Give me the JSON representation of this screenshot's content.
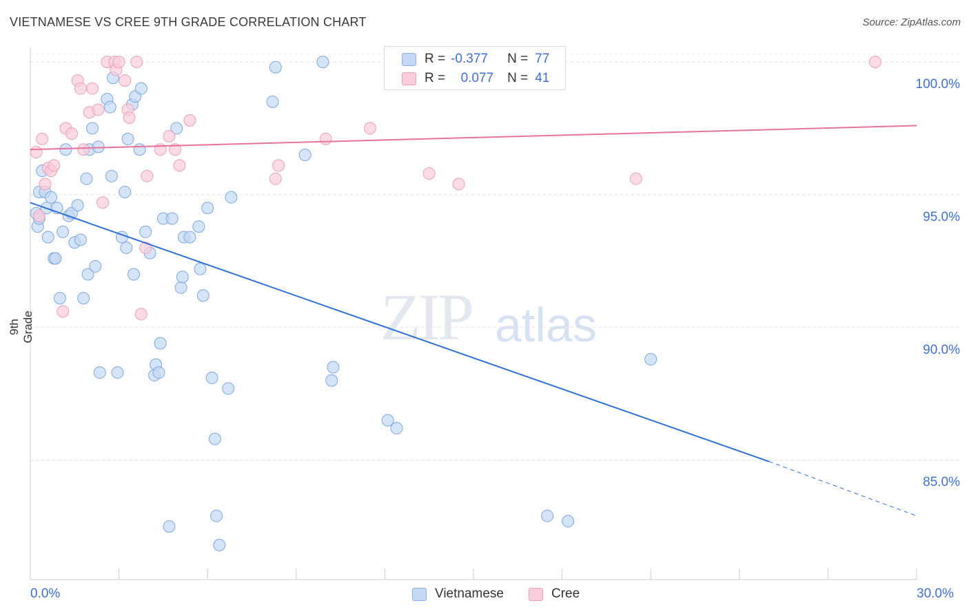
{
  "title": "VIETNAMESE VS CREE 9TH GRADE CORRELATION CHART",
  "source": "Source: ZipAtlas.com",
  "watermark": {
    "zip": "ZIP",
    "atlas": "atlas"
  },
  "legend": {
    "r_label": "R =",
    "n_label": "N =",
    "rows": [
      {
        "r": "-0.377",
        "n": "77",
        "color": "#a9c4ec"
      },
      {
        "r": "0.077",
        "n": "41",
        "color": "#f6b7cb"
      }
    ]
  },
  "colors": {
    "blue_line": "#2f6fd6",
    "pink_line": "#e8729a",
    "blue_fill": "#c5d8f3",
    "pink_fill": "#f9cddb",
    "axis_text": "#3f6fd0"
  },
  "chart_data": {
    "type": "scatter",
    "title": "VIETNAMESE VS CREE 9TH GRADE CORRELATION CHART",
    "xlabel": "",
    "ylabel": "9th Grade",
    "xlim": [
      0,
      30
    ],
    "ylim": [
      80.5,
      100.7
    ],
    "x_ticks": [
      "0.0%",
      "30.0%"
    ],
    "y_ticks": [
      {
        "value": 85,
        "label": "85.0%"
      },
      {
        "value": 90,
        "label": "90.0%"
      },
      {
        "value": 95,
        "label": "95.0%"
      },
      {
        "value": 100,
        "label": "100.0%"
      }
    ],
    "grid": true,
    "legend_position": "top-center",
    "series": [
      {
        "name": "Vietnamese",
        "r": -0.377,
        "n": 77,
        "trend": {
          "x0": 0,
          "y0": 94.7,
          "x1": 25,
          "y1": 84.95,
          "dashed_to_x": 30,
          "dashed_to_y": 82.9
        },
        "points": [
          [
            0.2,
            94.3
          ],
          [
            0.25,
            93.8
          ],
          [
            0.3,
            95.1
          ],
          [
            0.4,
            95.9
          ],
          [
            0.5,
            95.1
          ],
          [
            0.55,
            94.5
          ],
          [
            0.6,
            93.4
          ],
          [
            0.7,
            94.9
          ],
          [
            0.8,
            92.6
          ],
          [
            0.9,
            94.5
          ],
          [
            1.0,
            91.1
          ],
          [
            1.1,
            93.6
          ],
          [
            1.2,
            96.7
          ],
          [
            1.3,
            94.2
          ],
          [
            1.4,
            94.3
          ],
          [
            1.5,
            93.2
          ],
          [
            1.6,
            94.6
          ],
          [
            1.7,
            93.3
          ],
          [
            1.8,
            91.1
          ],
          [
            1.9,
            95.6
          ],
          [
            1.95,
            92.0
          ],
          [
            2.0,
            96.7
          ],
          [
            2.1,
            97.5
          ],
          [
            2.2,
            92.3
          ],
          [
            2.3,
            96.8
          ],
          [
            2.35,
            88.3
          ],
          [
            2.6,
            98.6
          ],
          [
            2.7,
            98.3
          ],
          [
            2.75,
            95.7
          ],
          [
            2.8,
            99.4
          ],
          [
            2.95,
            88.3
          ],
          [
            3.1,
            93.4
          ],
          [
            3.2,
            95.1
          ],
          [
            3.25,
            93.0
          ],
          [
            3.3,
            97.1
          ],
          [
            3.45,
            98.4
          ],
          [
            3.5,
            92.0
          ],
          [
            3.55,
            98.7
          ],
          [
            3.7,
            96.7
          ],
          [
            3.75,
            99.0
          ],
          [
            3.9,
            93.6
          ],
          [
            4.05,
            92.8
          ],
          [
            4.2,
            88.2
          ],
          [
            4.25,
            88.6
          ],
          [
            4.35,
            88.3
          ],
          [
            4.4,
            89.4
          ],
          [
            4.5,
            94.1
          ],
          [
            4.8,
            94.1
          ],
          [
            4.95,
            97.5
          ],
          [
            5.1,
            91.5
          ],
          [
            5.15,
            91.9
          ],
          [
            5.2,
            93.4
          ],
          [
            5.4,
            93.4
          ],
          [
            5.7,
            93.8
          ],
          [
            5.75,
            92.2
          ],
          [
            5.85,
            91.2
          ],
          [
            6.0,
            94.5
          ],
          [
            6.15,
            88.1
          ],
          [
            6.25,
            85.8
          ],
          [
            6.3,
            82.9
          ],
          [
            6.4,
            81.8
          ],
          [
            6.7,
            87.7
          ],
          [
            6.8,
            94.9
          ],
          [
            8.2,
            98.5
          ],
          [
            8.3,
            99.8
          ],
          [
            9.3,
            96.5
          ],
          [
            9.9,
            100.0
          ],
          [
            10.2,
            88.0
          ],
          [
            10.25,
            88.5
          ],
          [
            12.1,
            86.5
          ],
          [
            12.4,
            86.2
          ],
          [
            17.5,
            82.9
          ],
          [
            18.2,
            82.7
          ],
          [
            21.0,
            88.8
          ],
          [
            4.7,
            82.5
          ],
          [
            0.3,
            94.1
          ],
          [
            0.85,
            92.6
          ]
        ]
      },
      {
        "name": "Cree",
        "r": 0.077,
        "n": 41,
        "trend": {
          "x0": 0,
          "y0": 96.7,
          "x1": 30,
          "y1": 97.6
        },
        "points": [
          [
            0.2,
            96.6
          ],
          [
            0.3,
            94.2
          ],
          [
            0.4,
            97.1
          ],
          [
            0.5,
            95.4
          ],
          [
            0.6,
            96.0
          ],
          [
            0.7,
            95.9
          ],
          [
            0.8,
            96.1
          ],
          [
            1.1,
            90.6
          ],
          [
            1.2,
            97.5
          ],
          [
            1.4,
            97.3
          ],
          [
            1.6,
            99.3
          ],
          [
            1.7,
            99.0
          ],
          [
            1.8,
            96.7
          ],
          [
            2.0,
            98.1
          ],
          [
            2.1,
            99.0
          ],
          [
            2.3,
            98.2
          ],
          [
            2.45,
            94.7
          ],
          [
            2.6,
            100.0
          ],
          [
            2.85,
            100.0
          ],
          [
            2.9,
            99.7
          ],
          [
            3.0,
            100.0
          ],
          [
            3.2,
            99.3
          ],
          [
            3.3,
            98.2
          ],
          [
            3.35,
            97.9
          ],
          [
            3.6,
            100.0
          ],
          [
            3.75,
            90.5
          ],
          [
            3.9,
            93.0
          ],
          [
            3.95,
            95.7
          ],
          [
            4.4,
            96.7
          ],
          [
            4.7,
            97.2
          ],
          [
            4.9,
            96.7
          ],
          [
            5.05,
            96.1
          ],
          [
            5.4,
            97.8
          ],
          [
            8.3,
            95.6
          ],
          [
            8.4,
            96.1
          ],
          [
            10.0,
            97.1
          ],
          [
            11.5,
            97.5
          ],
          [
            13.5,
            95.8
          ],
          [
            14.5,
            95.4
          ],
          [
            20.5,
            95.6
          ],
          [
            28.6,
            100.0
          ]
        ]
      }
    ]
  },
  "bottom_legend": [
    {
      "name": "Vietnamese",
      "color": "#a9c4ec"
    },
    {
      "name": "Cree",
      "color": "#f6b7cb"
    }
  ]
}
